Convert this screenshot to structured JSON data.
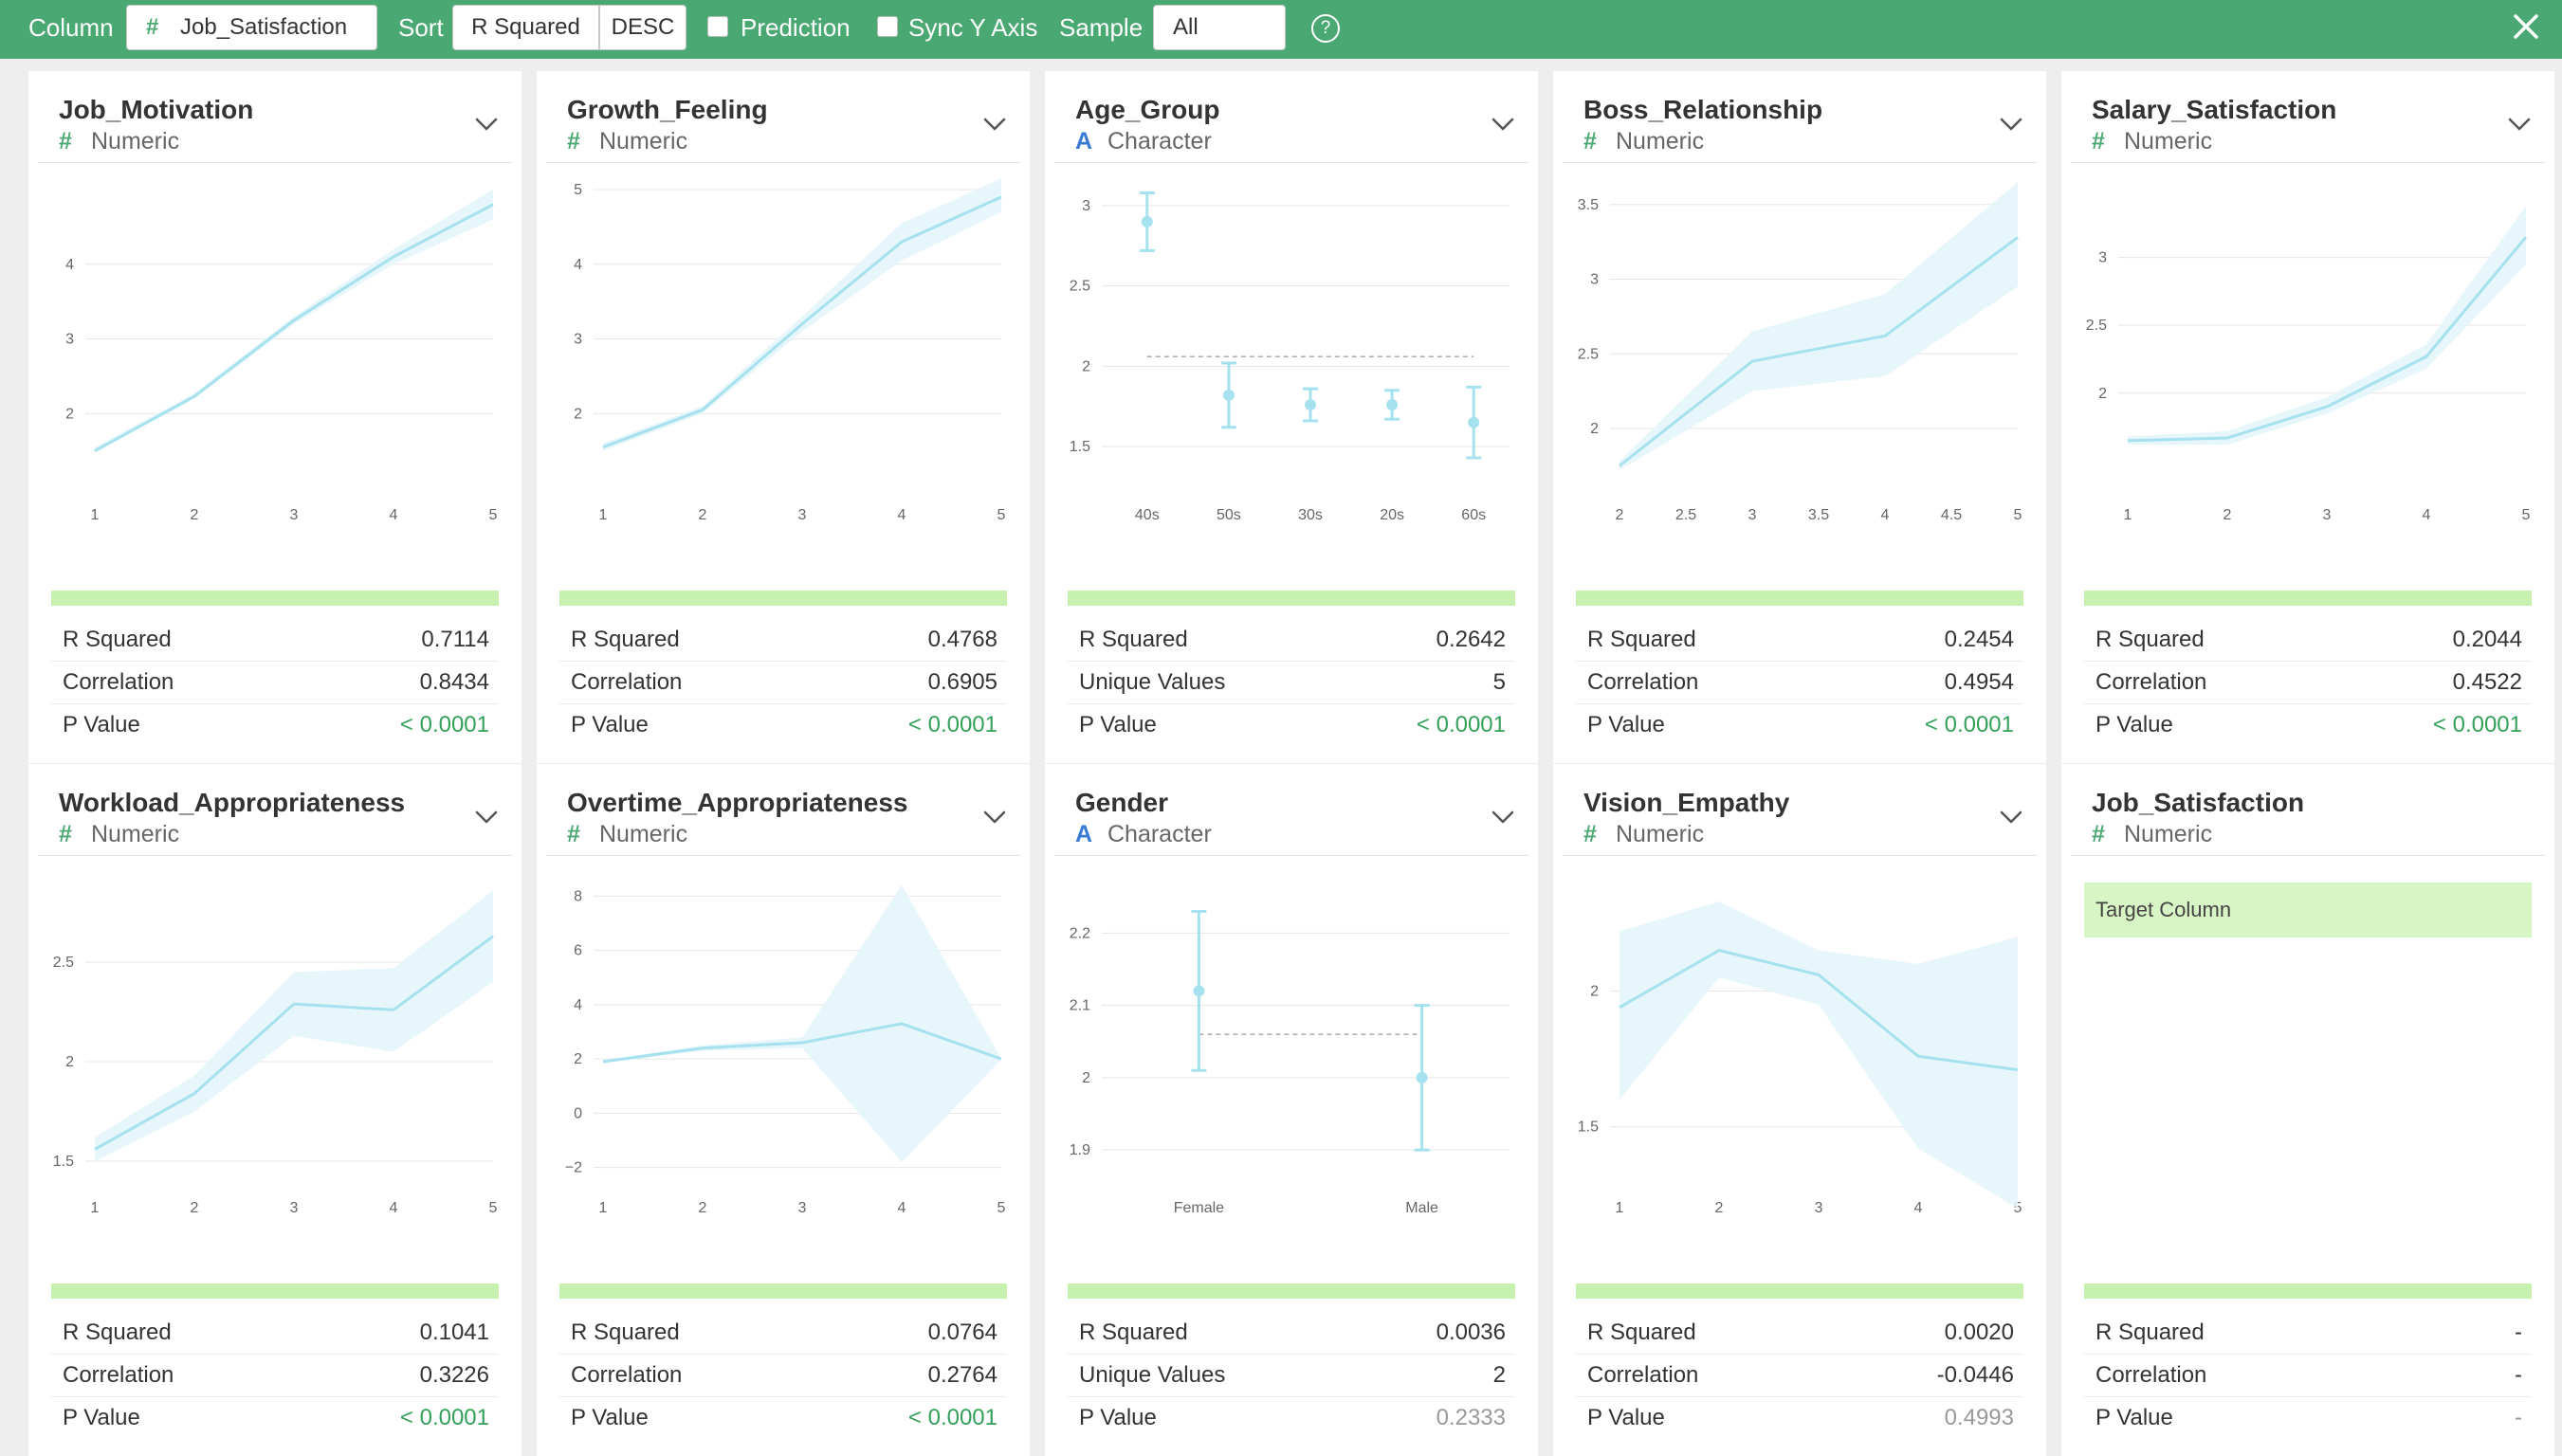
{
  "toolbar": {
    "column_label": "Column",
    "column_glyph": "#",
    "column_value": "Job_Satisfaction",
    "sort_label": "Sort",
    "sort_by": "R Squared",
    "sort_order": "DESC",
    "prediction_label": "Prediction",
    "prediction_checked": false,
    "sync_y_label": "Sync Y Axis",
    "sync_y_checked": false,
    "sample_label": "Sample",
    "sample_value": "All",
    "help_icon": "?",
    "close_icon": "close-icon"
  },
  "colors": {
    "header": "#4aa872",
    "line": "#a5e1ee",
    "band": "#e4f5fb",
    "strip": "#c6f1ae",
    "significant": "#34a05a"
  },
  "cards": [
    {
      "title": "Job_Motivation",
      "type_glyph": "#",
      "type": "Numeric",
      "kind": "num",
      "stats": [
        {
          "label": "R Squared",
          "value": "0.7114"
        },
        {
          "label": "Correlation",
          "value": "0.8434"
        },
        {
          "label": "P Value",
          "value": "< 0.0001",
          "style": "sig"
        }
      ]
    },
    {
      "title": "Growth_Feeling",
      "type_glyph": "#",
      "type": "Numeric",
      "kind": "num",
      "stats": [
        {
          "label": "R Squared",
          "value": "0.4768"
        },
        {
          "label": "Correlation",
          "value": "0.6905"
        },
        {
          "label": "P Value",
          "value": "< 0.0001",
          "style": "sig"
        }
      ]
    },
    {
      "title": "Age_Group",
      "type_glyph": "A",
      "type": "Character",
      "kind": "chr",
      "stats": [
        {
          "label": "R Squared",
          "value": "0.2642"
        },
        {
          "label": "Unique Values",
          "value": "5"
        },
        {
          "label": "P Value",
          "value": "< 0.0001",
          "style": "sig"
        }
      ]
    },
    {
      "title": "Boss_Relationship",
      "type_glyph": "#",
      "type": "Numeric",
      "kind": "num",
      "stats": [
        {
          "label": "R Squared",
          "value": "0.2454"
        },
        {
          "label": "Correlation",
          "value": "0.4954"
        },
        {
          "label": "P Value",
          "value": "< 0.0001",
          "style": "sig"
        }
      ]
    },
    {
      "title": "Salary_Satisfaction",
      "type_glyph": "#",
      "type": "Numeric",
      "kind": "num",
      "stats": [
        {
          "label": "R Squared",
          "value": "0.2044"
        },
        {
          "label": "Correlation",
          "value": "0.4522"
        },
        {
          "label": "P Value",
          "value": "< 0.0001",
          "style": "sig"
        }
      ]
    },
    {
      "title": "Workload_Appropriateness",
      "type_glyph": "#",
      "type": "Numeric",
      "kind": "num",
      "stats": [
        {
          "label": "R Squared",
          "value": "0.1041"
        },
        {
          "label": "Correlation",
          "value": "0.3226"
        },
        {
          "label": "P Value",
          "value": "< 0.0001",
          "style": "sig"
        }
      ]
    },
    {
      "title": "Overtime_Appropriateness",
      "type_glyph": "#",
      "type": "Numeric",
      "kind": "num",
      "stats": [
        {
          "label": "R Squared",
          "value": "0.0764"
        },
        {
          "label": "Correlation",
          "value": "0.2764"
        },
        {
          "label": "P Value",
          "value": "< 0.0001",
          "style": "sig"
        }
      ]
    },
    {
      "title": "Gender",
      "type_glyph": "A",
      "type": "Character",
      "kind": "chr",
      "stats": [
        {
          "label": "R Squared",
          "value": "0.0036"
        },
        {
          "label": "Unique Values",
          "value": "2"
        },
        {
          "label": "P Value",
          "value": "0.2333",
          "style": "muted"
        }
      ]
    },
    {
      "title": "Vision_Empathy",
      "type_glyph": "#",
      "type": "Numeric",
      "kind": "num",
      "stats": [
        {
          "label": "R Squared",
          "value": "0.0020"
        },
        {
          "label": "Correlation",
          "value": "-0.0446"
        },
        {
          "label": "P Value",
          "value": "0.4993",
          "style": "muted"
        }
      ]
    },
    {
      "title": "Job_Satisfaction",
      "type_glyph": "#",
      "type": "Numeric",
      "kind": "num",
      "target_label": "Target Column",
      "stats": [
        {
          "label": "R Squared",
          "value": "-"
        },
        {
          "label": "Correlation",
          "value": "-"
        },
        {
          "label": "P Value",
          "value": "-",
          "style": "muted"
        }
      ]
    }
  ],
  "chart_data": [
    {
      "type": "line",
      "card": 0,
      "x": [
        1,
        2,
        3,
        4,
        5
      ],
      "y": [
        1.5,
        2.23,
        3.25,
        4.1,
        4.8
      ],
      "lower": [
        1.48,
        2.2,
        3.2,
        4.0,
        4.6
      ],
      "upper": [
        1.55,
        2.27,
        3.3,
        4.2,
        5.0
      ],
      "xlim": [
        1,
        5
      ],
      "ylim": [
        1.0,
        5.0
      ],
      "xticks": [
        1,
        2,
        3,
        4,
        5
      ],
      "yticks": [
        2,
        3,
        4
      ]
    },
    {
      "type": "line",
      "card": 1,
      "x": [
        1,
        2,
        3,
        4,
        5
      ],
      "y": [
        1.55,
        2.05,
        3.2,
        4.3,
        4.9
      ],
      "lower": [
        1.5,
        2.0,
        3.1,
        4.05,
        4.7
      ],
      "upper": [
        1.6,
        2.1,
        3.3,
        4.55,
        5.15
      ],
      "xlim": [
        1,
        5
      ],
      "ylim": [
        1.0,
        5.0
      ],
      "xticks": [
        1,
        2,
        3,
        4,
        5
      ],
      "yticks": [
        2,
        3,
        4,
        5
      ]
    },
    {
      "type": "errorbar",
      "card": 2,
      "categories": [
        "40s",
        "50s",
        "30s",
        "20s",
        "60s"
      ],
      "values": [
        2.9,
        1.82,
        1.76,
        1.76,
        1.65
      ],
      "lower": [
        2.72,
        1.62,
        1.66,
        1.67,
        1.43
      ],
      "upper": [
        3.08,
        2.02,
        1.86,
        1.85,
        1.87
      ],
      "mean": 2.06,
      "ylim": [
        1.3,
        3.1
      ],
      "yticks": [
        1.5,
        2,
        2.5,
        3
      ]
    },
    {
      "type": "line",
      "card": 3,
      "x": [
        2,
        3,
        4,
        5
      ],
      "y": [
        1.75,
        2.45,
        2.62,
        3.28
      ],
      "lower": [
        1.72,
        2.25,
        2.35,
        2.95
      ],
      "upper": [
        1.78,
        2.65,
        2.9,
        3.65
      ],
      "xlim": [
        2,
        5
      ],
      "ylim": [
        1.6,
        3.6
      ],
      "xticks": [
        2,
        2.5,
        3,
        3.5,
        4,
        4.5,
        5
      ],
      "yticks": [
        2,
        2.5,
        3,
        3.5
      ]
    },
    {
      "type": "line",
      "card": 4,
      "x": [
        1,
        2,
        3,
        4,
        5
      ],
      "y": [
        1.65,
        1.67,
        1.9,
        2.27,
        3.15
      ],
      "lower": [
        1.62,
        1.62,
        1.85,
        2.18,
        2.95
      ],
      "upper": [
        1.68,
        1.72,
        1.97,
        2.36,
        3.38
      ],
      "xlim": [
        1,
        5
      ],
      "ylim": [
        1.3,
        3.5
      ],
      "xticks": [
        1,
        2,
        3,
        4,
        5
      ],
      "yticks": [
        2,
        2.5,
        3
      ]
    },
    {
      "type": "line",
      "card": 5,
      "x": [
        1,
        2,
        3,
        4,
        5
      ],
      "y": [
        1.56,
        1.84,
        2.29,
        2.26,
        2.63
      ],
      "lower": [
        1.5,
        1.75,
        2.13,
        2.05,
        2.4
      ],
      "upper": [
        1.62,
        1.93,
        2.45,
        2.47,
        2.86
      ],
      "xlim": [
        1,
        5
      ],
      "ylim": [
        1.4,
        2.9
      ],
      "xticks": [
        1,
        2,
        3,
        4,
        5
      ],
      "yticks": [
        1.5,
        2,
        2.5
      ]
    },
    {
      "type": "line",
      "card": 6,
      "x": [
        1,
        2,
        3,
        4,
        5
      ],
      "y": [
        1.9,
        2.4,
        2.6,
        3.3,
        2.0
      ],
      "lower": [
        1.85,
        2.3,
        2.4,
        -1.8,
        1.98
      ],
      "upper": [
        1.95,
        2.5,
        2.8,
        8.4,
        2.02
      ],
      "xlim": [
        1,
        5
      ],
      "ylim": [
        -2.5,
        8.5
      ],
      "xticks": [
        1,
        2,
        3,
        4,
        5
      ],
      "yticks": [
        -2,
        0,
        2,
        4,
        6,
        8
      ]
    },
    {
      "type": "errorbar",
      "card": 7,
      "categories": [
        "Female",
        "Male"
      ],
      "values": [
        2.12,
        2.0
      ],
      "lower": [
        2.01,
        1.9
      ],
      "upper": [
        2.23,
        2.1
      ],
      "mean": 2.06,
      "ylim": [
        1.87,
        2.27
      ],
      "yticks": [
        1.9,
        2,
        2.1,
        2.2
      ]
    },
    {
      "type": "line",
      "card": 8,
      "x": [
        1,
        2,
        3,
        4,
        5
      ],
      "y": [
        1.94,
        2.15,
        2.06,
        1.76,
        1.71
      ],
      "lower": [
        1.6,
        2.05,
        1.95,
        1.42,
        1.2
      ],
      "upper": [
        2.22,
        2.33,
        2.15,
        2.1,
        2.2
      ],
      "xlim": [
        1,
        5
      ],
      "ylim": [
        1.3,
        2.4
      ],
      "xticks": [
        1,
        2,
        3,
        4,
        5
      ],
      "yticks": [
        1.5,
        2
      ]
    }
  ]
}
